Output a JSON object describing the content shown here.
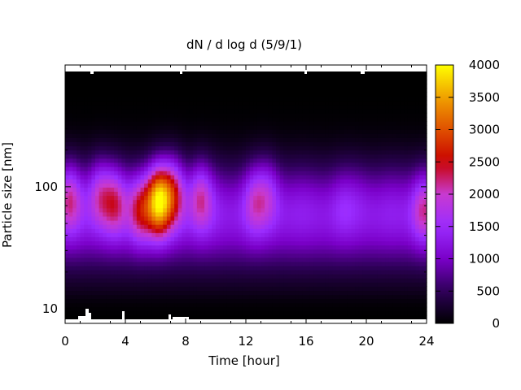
{
  "chart_data": {
    "type": "heatmap",
    "title": "dN / d log d (5/9/1)",
    "xlabel": "Time [hour]",
    "ylabel": "Particle size [nm]",
    "xlim": [
      0,
      24
    ],
    "x_ticks": [
      "0",
      "4",
      "8",
      "12",
      "16",
      "20",
      "24"
    ],
    "x_tick_values": [
      0,
      4,
      8,
      12,
      16,
      20,
      24
    ],
    "ylim_nm": [
      8.2,
      880
    ],
    "y_scale": "log",
    "y_ticks": [
      "10",
      "100"
    ],
    "y_tick_values": [
      10,
      100
    ],
    "colorbar": {
      "range": [
        0,
        4000
      ],
      "ticks": [
        "0",
        "500",
        "1000",
        "1500",
        "2000",
        "2500",
        "3000",
        "3500",
        "4000"
      ],
      "tick_values": [
        0,
        500,
        1000,
        1500,
        2000,
        2500,
        3000,
        3500,
        4000
      ],
      "colormap": [
        "#000000",
        "#2e0059",
        "#7a00c8",
        "#9a2cff",
        "#c83ad0",
        "#c80000",
        "#e05000",
        "#f0a000",
        "#ffff00"
      ]
    },
    "peak_size_nm": 80,
    "events": [
      {
        "time_hour": 0.3,
        "amplitude": 2300
      },
      {
        "time_hour": 2.3,
        "amplitude": 2200
      },
      {
        "time_hour": 3.3,
        "amplitude": 2300
      },
      {
        "time_hour": 5.0,
        "amplitude": 2500
      },
      {
        "time_hour": 6.2,
        "amplitude": 3900
      },
      {
        "time_hour": 7.2,
        "amplitude": 2600
      },
      {
        "time_hour": 9.0,
        "amplitude": 2300
      },
      {
        "time_hour": 12.6,
        "amplitude": 2000
      },
      {
        "time_hour": 13.5,
        "amplitude": 1900
      },
      {
        "time_hour": 18.5,
        "amplitude": 1500
      },
      {
        "time_hour": 19.6,
        "amplitude": 1400
      },
      {
        "time_hour": 23.8,
        "amplitude": 2200
      }
    ]
  }
}
